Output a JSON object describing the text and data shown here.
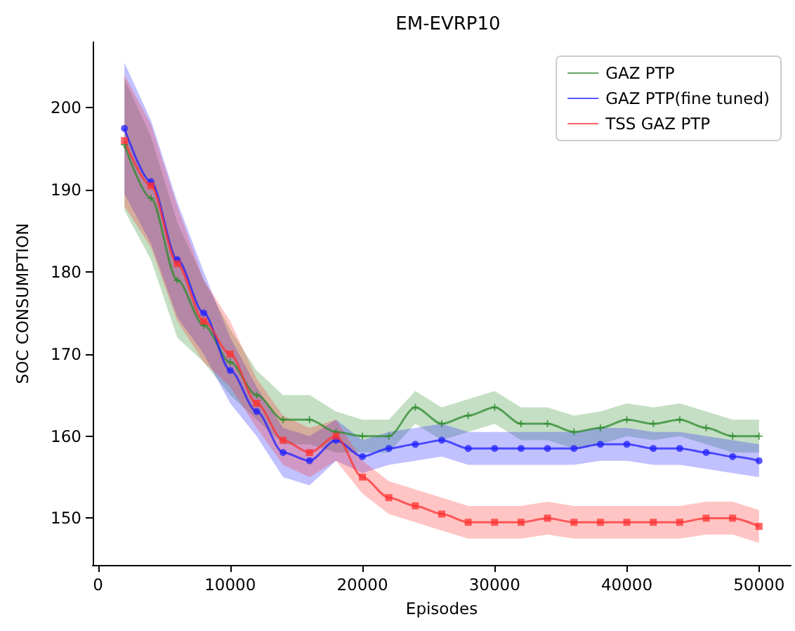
{
  "chart_data": {
    "type": "line",
    "title": "EM-EVRP10",
    "xlabel": "Episodes",
    "ylabel": "SOC CONSUMPTION",
    "x": [
      2000,
      4000,
      6000,
      8000,
      10000,
      12000,
      14000,
      16000,
      18000,
      20000,
      22000,
      24000,
      26000,
      28000,
      30000,
      32000,
      34000,
      36000,
      38000,
      40000,
      42000,
      44000,
      46000,
      48000,
      50000
    ],
    "series": [
      {
        "name": "GAZ PTP",
        "color": "#2e8b2e",
        "marker": "cross",
        "values": [
          195.5,
          189,
          179,
          173.5,
          169,
          165,
          162,
          162,
          160.5,
          160,
          160,
          163.5,
          161.5,
          162.5,
          163.5,
          161.5,
          161.5,
          160.5,
          161,
          162,
          161.5,
          162,
          161,
          160,
          160
        ],
        "lower": [
          187.5,
          181.5,
          172,
          169,
          165,
          162,
          159,
          159,
          158,
          158,
          158,
          161.5,
          159.5,
          160.5,
          161.5,
          159.5,
          159.5,
          158.5,
          159,
          160,
          159.5,
          160,
          159,
          158,
          158
        ],
        "upper": [
          203.5,
          196.5,
          186,
          179,
          173,
          168,
          165,
          165,
          163,
          162,
          162,
          165.5,
          163.5,
          164.5,
          165.5,
          163.5,
          163.5,
          162.5,
          163,
          164,
          163.5,
          164,
          163,
          162,
          162
        ]
      },
      {
        "name": "GAZ PTP(fine tuned)",
        "color": "#2020ff",
        "marker": "circle",
        "values": [
          197.5,
          191,
          181.5,
          175,
          168,
          163,
          158,
          157,
          159.5,
          157.5,
          158.5,
          159,
          159.5,
          158.5,
          158.5,
          158.5,
          158.5,
          158.5,
          159,
          159,
          158.5,
          158.5,
          158,
          157.5,
          157
        ],
        "lower": [
          189.5,
          183.5,
          174.5,
          170,
          164,
          160,
          155,
          154,
          157,
          155.5,
          156.5,
          157,
          157.5,
          156.5,
          156.5,
          156.5,
          156.5,
          156.5,
          157,
          157,
          156.5,
          156.5,
          156,
          155.5,
          155
        ],
        "upper": [
          205.5,
          198.5,
          188.5,
          180,
          172,
          166,
          161,
          160,
          162,
          159.5,
          160.5,
          161,
          161.5,
          160.5,
          160.5,
          160.5,
          160.5,
          160.5,
          161,
          161,
          160.5,
          160.5,
          160,
          159.5,
          159
        ]
      },
      {
        "name": "TSS GAZ PTP",
        "color": "#ff3030",
        "marker": "square",
        "values": [
          196,
          190.5,
          181,
          174,
          170,
          164,
          159.5,
          158,
          160,
          155,
          152.5,
          151.5,
          150.5,
          149.5,
          149.5,
          149.5,
          150,
          149.5,
          149.5,
          149.5,
          149.5,
          149.5,
          150,
          150,
          149
        ],
        "lower": [
          188,
          183,
          174,
          169,
          166,
          161,
          156.5,
          155,
          157,
          153,
          150.5,
          149.5,
          148.5,
          147.5,
          147.5,
          147.5,
          148,
          147.5,
          147.5,
          147.5,
          147.5,
          147.5,
          148,
          148,
          147
        ],
        "upper": [
          204,
          198,
          188,
          179,
          174,
          167,
          162.5,
          161,
          162,
          157,
          154.5,
          153.5,
          152.5,
          151.5,
          151.5,
          151.5,
          152,
          151.5,
          151.5,
          151.5,
          151.5,
          151.5,
          152,
          152,
          151
        ]
      }
    ],
    "xlim": [
      -400,
      52400
    ],
    "xticks": [
      0,
      10000,
      20000,
      30000,
      40000,
      50000
    ],
    "ylim": [
      144.3,
      208
    ],
    "yticks": [
      150,
      160,
      170,
      180,
      190,
      200
    ],
    "grid": false,
    "legend": "top right",
    "line_style": "solid"
  }
}
